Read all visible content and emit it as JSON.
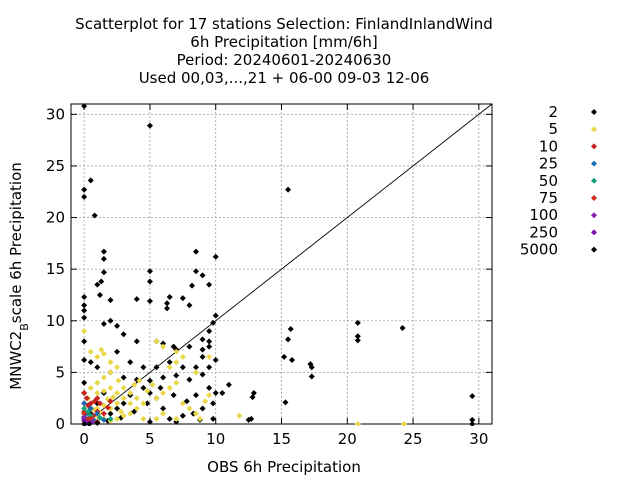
{
  "chart_data": {
    "type": "scatter",
    "title_lines": [
      "Scatterplot for   17 stations Selection: FinlandInlandWind",
      "6h Precipitation [mm/6h]",
      "Period: 20240601-20240630",
      "Used 00,03,...,21 + 06-00 09-03 12-06"
    ],
    "xlabel": "OBS 6h Precipitation",
    "ylabel_main": "MNWC2",
    "ylabel_sub": "B",
    "ylabel_rest": "scale 6h Precipitation",
    "xlim": [
      -1,
      31
    ],
    "ylim": [
      0,
      31
    ],
    "xticks": [
      0,
      5,
      10,
      15,
      20,
      25,
      30
    ],
    "yticks": [
      0,
      5,
      10,
      15,
      20,
      25,
      30
    ],
    "grid": true,
    "diagonal": true,
    "legend_position": "right",
    "series": [
      {
        "name": "2",
        "color": "#000000",
        "points": [
          [
            0,
            30.8
          ],
          [
            0,
            22.7
          ],
          [
            0,
            22
          ],
          [
            0.5,
            23.6
          ],
          [
            0.8,
            20.2
          ],
          [
            5,
            28.9
          ],
          [
            15.5,
            22.7
          ],
          [
            1.5,
            16.7
          ],
          [
            1.5,
            16
          ],
          [
            1.5,
            14.7
          ],
          [
            1.3,
            13.8
          ],
          [
            1,
            13.5
          ],
          [
            0,
            12.3
          ],
          [
            0,
            11.5
          ],
          [
            1.2,
            12.5
          ],
          [
            2,
            12
          ],
          [
            5,
            14.8
          ],
          [
            5,
            13.8
          ],
          [
            5,
            11.9
          ],
          [
            4,
            12.1
          ],
          [
            6.5,
            12.3
          ],
          [
            6.3,
            11.7
          ],
          [
            8,
            11.5
          ],
          [
            8.2,
            13.4
          ],
          [
            8.5,
            14.8
          ],
          [
            9,
            14.4
          ],
          [
            9.5,
            13.5
          ],
          [
            10,
            16.2
          ],
          [
            8.5,
            16.7
          ],
          [
            7.5,
            12.2
          ],
          [
            6.3,
            11.2
          ],
          [
            2,
            10
          ],
          [
            1.5,
            9.7
          ],
          [
            2.5,
            9.5
          ],
          [
            3,
            8.7
          ],
          [
            4,
            8
          ],
          [
            5.5,
            8
          ],
          [
            6,
            7.8
          ],
          [
            6.8,
            7.5
          ],
          [
            7,
            7.2
          ],
          [
            8,
            7.5
          ],
          [
            9,
            7.2
          ],
          [
            9.5,
            7.5
          ],
          [
            10,
            10.5
          ],
          [
            9.8,
            9.8
          ],
          [
            9.5,
            9
          ],
          [
            9,
            8.2
          ],
          [
            9.5,
            8
          ],
          [
            9,
            6.5
          ],
          [
            10,
            6.2
          ],
          [
            9.5,
            5.5
          ],
          [
            9,
            4.8
          ],
          [
            8,
            4.3
          ],
          [
            7,
            4.7
          ],
          [
            6,
            4.5
          ],
          [
            5,
            4.2
          ],
          [
            4,
            4.3
          ],
          [
            3,
            4.5
          ],
          [
            2,
            5
          ],
          [
            1,
            5.5
          ],
          [
            0.5,
            6
          ],
          [
            0,
            6.2
          ],
          [
            15.7,
            9.2
          ],
          [
            15.5,
            8.2
          ],
          [
            15.2,
            6.5
          ],
          [
            15.8,
            6.2
          ],
          [
            17.3,
            5.5
          ],
          [
            17.2,
            5.8
          ],
          [
            17.3,
            4.6
          ],
          [
            20.8,
            9.8
          ],
          [
            20.8,
            8.5
          ],
          [
            20.8,
            8.1
          ],
          [
            24.2,
            9.3
          ],
          [
            15.3,
            2.1
          ],
          [
            12.9,
            3
          ],
          [
            12.8,
            2.6
          ],
          [
            12.7,
            0.5
          ],
          [
            12.5,
            0.4
          ],
          [
            29.5,
            2.7
          ],
          [
            29.5,
            0.4
          ],
          [
            29.5,
            0
          ],
          [
            11,
            3.8
          ],
          [
            10.5,
            3
          ],
          [
            9.8,
            2
          ],
          [
            9,
            1.5
          ],
          [
            8.3,
            1
          ],
          [
            7.5,
            0.8
          ],
          [
            6.5,
            0.5
          ],
          [
            6,
            1.5
          ],
          [
            5.5,
            2.5
          ],
          [
            5,
            3
          ],
          [
            4.5,
            3.5
          ],
          [
            3.5,
            2.8
          ],
          [
            3,
            2
          ],
          [
            2.5,
            1.5
          ],
          [
            2,
            1
          ],
          [
            1.5,
            3
          ],
          [
            1,
            2
          ],
          [
            0.5,
            1
          ],
          [
            0,
            0.5
          ],
          [
            0,
            3
          ],
          [
            0,
            4
          ],
          [
            0,
            8
          ],
          [
            0,
            10.3
          ],
          [
            0,
            11
          ],
          [
            2.5,
            7
          ],
          [
            3.5,
            6
          ],
          [
            4.5,
            5.5
          ],
          [
            5.5,
            5.5
          ],
          [
            6.5,
            6
          ],
          [
            7.5,
            5.5
          ],
          [
            8.5,
            5.5
          ],
          [
            9.5,
            3.5
          ],
          [
            10,
            3
          ],
          [
            8.5,
            2.8
          ],
          [
            7.8,
            2.2
          ],
          [
            6.8,
            2.8
          ],
          [
            5.8,
            3.5
          ],
          [
            4.8,
            2
          ],
          [
            3.8,
            1.2
          ],
          [
            2.8,
            0.6
          ],
          [
            1.8,
            0.3
          ],
          [
            5,
            0.2
          ],
          [
            7,
            0.2
          ],
          [
            8.8,
            0.4
          ],
          [
            9.8,
            0.5
          ]
        ]
      },
      {
        "name": "5",
        "color": "#e8d84a",
        "points": [
          [
            0,
            9
          ],
          [
            0.5,
            7
          ],
          [
            1,
            6.5
          ],
          [
            1.3,
            7.2
          ],
          [
            1.5,
            6.8
          ],
          [
            2,
            6
          ],
          [
            2.5,
            5.5
          ],
          [
            2,
            5
          ],
          [
            1.5,
            4.5
          ],
          [
            1,
            4
          ],
          [
            0.5,
            3.5
          ],
          [
            1,
            3
          ],
          [
            1.5,
            3.2
          ],
          [
            2,
            3.5
          ],
          [
            2.5,
            3
          ],
          [
            3,
            3.5
          ],
          [
            3.5,
            3
          ],
          [
            3,
            2.5
          ],
          [
            2.5,
            2
          ],
          [
            2,
            1.5
          ],
          [
            1.5,
            1.8
          ],
          [
            1,
            1.5
          ],
          [
            0.5,
            2
          ],
          [
            0.3,
            2.5
          ],
          [
            3.5,
            2
          ],
          [
            4,
            2.5
          ],
          [
            4.5,
            2
          ],
          [
            4,
            1.5
          ],
          [
            3.5,
            1
          ],
          [
            3,
            0.8
          ],
          [
            2.5,
            0.5
          ],
          [
            2,
            0.3
          ],
          [
            1.5,
            0.5
          ],
          [
            1,
            0.8
          ],
          [
            5.5,
            8
          ],
          [
            6,
            7.5
          ],
          [
            7,
            7
          ],
          [
            7.5,
            6.5
          ],
          [
            7,
            6
          ],
          [
            6.5,
            5.5
          ],
          [
            7,
            4
          ],
          [
            6.5,
            3.5
          ],
          [
            6,
            3
          ],
          [
            5.5,
            2.5
          ],
          [
            7.5,
            2
          ],
          [
            8,
            1.5
          ],
          [
            8.5,
            1
          ],
          [
            9.5,
            2.8
          ],
          [
            9.2,
            2.2
          ],
          [
            8.8,
            0.5
          ],
          [
            11.8,
            0.8
          ],
          [
            20.8,
            0
          ],
          [
            24.3,
            0
          ],
          [
            9.5,
            6.5
          ],
          [
            8.5,
            5
          ],
          [
            6,
            1
          ],
          [
            5.5,
            0.5
          ],
          [
            4.5,
            0.5
          ],
          [
            7,
            0.5
          ],
          [
            1.8,
            2.4
          ],
          [
            2.2,
            2.6
          ],
          [
            2.8,
            1.2
          ],
          [
            1.2,
            1.1
          ],
          [
            0.7,
            1.4
          ],
          [
            3.8,
            3.8
          ],
          [
            4.2,
            4.2
          ],
          [
            4.8,
            3.2
          ],
          [
            5.2,
            3.8
          ],
          [
            2.6,
            4.2
          ]
        ]
      },
      {
        "name": "10",
        "color": "#c8201c",
        "points": [
          [
            0,
            3
          ],
          [
            0.2,
            2.5
          ],
          [
            0.5,
            2
          ],
          [
            0.8,
            2.2
          ],
          [
            1,
            2.5
          ],
          [
            1.2,
            2
          ],
          [
            0.5,
            1.5
          ],
          [
            1,
            1.2
          ],
          [
            1.5,
            1
          ],
          [
            0.3,
            1.8
          ],
          [
            2,
            2.2
          ],
          [
            0,
            2
          ],
          [
            0.7,
            0.8
          ],
          [
            0,
            1.2
          ],
          [
            1.8,
            1.6
          ],
          [
            0.4,
            0.6
          ]
        ]
      },
      {
        "name": "25",
        "color": "#1a6db3",
        "points": [
          [
            0,
            2
          ],
          [
            0.5,
            1.5
          ],
          [
            0.2,
            1
          ],
          [
            1,
            1
          ],
          [
            0,
            0.5
          ],
          [
            0.8,
            0.3
          ],
          [
            0.3,
            0.2
          ],
          [
            1.5,
            0.4
          ]
        ]
      },
      {
        "name": "50",
        "color": "#12a07a",
        "points": [
          [
            0,
            1.5
          ],
          [
            0.3,
            1.2
          ],
          [
            0.5,
            0.8
          ],
          [
            1.2,
            0.6
          ],
          [
            0,
            0.7
          ],
          [
            2,
            0.5
          ]
        ]
      },
      {
        "name": "75",
        "color": "#d42a1c",
        "points": [
          [
            0,
            1
          ],
          [
            0.5,
            0.5
          ],
          [
            1,
            0.2
          ],
          [
            0.2,
            0.3
          ]
        ]
      },
      {
        "name": "100",
        "color": "#8a1fb0",
        "points": [
          [
            0,
            0.6
          ],
          [
            0.3,
            0.1
          ],
          [
            0.6,
            0.2
          ]
        ]
      },
      {
        "name": "250",
        "color": "#7a12a8",
        "points": [
          [
            0,
            0.3
          ],
          [
            0.1,
            0.05
          ]
        ]
      },
      {
        "name": "5000",
        "color": "#000000",
        "points": [
          [
            0,
            0
          ],
          [
            0.4,
            0
          ],
          [
            1,
            0.1
          ]
        ]
      }
    ]
  }
}
